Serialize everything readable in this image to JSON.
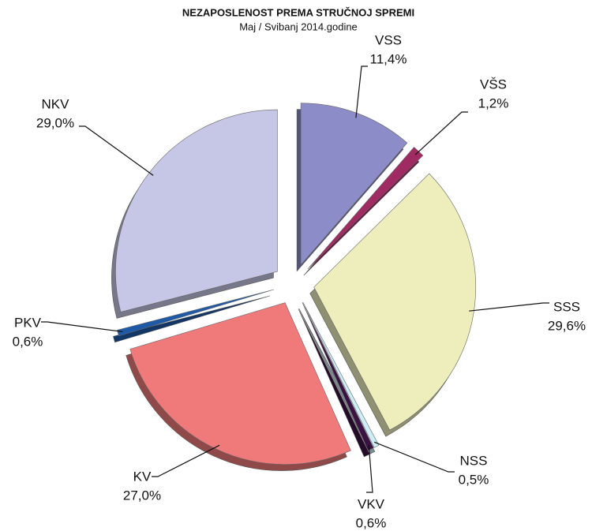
{
  "chart_data": {
    "type": "pie",
    "title": "NEZAPOSLENOST PREMA STRUČNOJ SPREMI",
    "subtitle": "Maj / Svibanj 2014.godine",
    "categories": [
      "VSS",
      "VŠS",
      "SSS",
      "NSS",
      "VKV",
      "KV",
      "PKV",
      "NKV"
    ],
    "values": [
      11.4,
      1.2,
      29.6,
      0.5,
      0.6,
      27.0,
      0.6,
      29.0
    ],
    "value_labels": [
      "11,4%",
      "1,2%",
      "29,6%",
      "0,5%",
      "0,6%",
      "27,0%",
      "0,6%",
      "29,0%"
    ],
    "colors": [
      "#8c8cc8",
      "#a02a62",
      "#eeeebc",
      "#cdeef5",
      "#3a1244",
      "#f07a7a",
      "#1e5aa8",
      "#c6c6e6"
    ]
  }
}
